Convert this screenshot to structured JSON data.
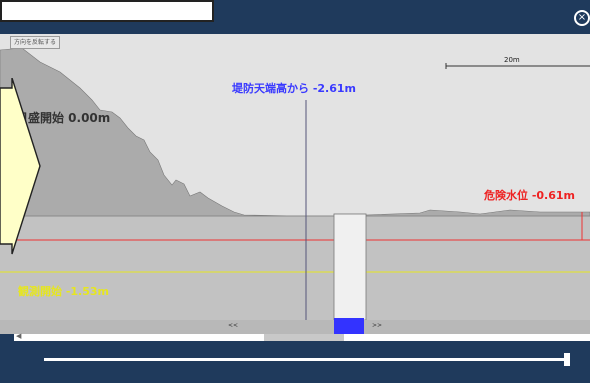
{
  "window": {
    "close_icon": "close-icon"
  },
  "view": {
    "mode_label": "方向を反転する",
    "scale_label": "20m",
    "nav_left": "<<",
    "nav_right": ">>"
  },
  "levels": {
    "ground": {
      "label": "日盛開始 0.00m",
      "color": "#333333"
    },
    "bank_top": {
      "label": "堤防天端高から -2.61m",
      "color": "#3a3aff"
    },
    "danger": {
      "label": "危険水位 -0.61m",
      "color": "#ee2222"
    },
    "warning": {
      "label": "観測開始 -1.53m",
      "color": "#e6e620"
    }
  },
  "timeline": {
    "position": 1.0
  },
  "colors": {
    "frame": "#1f3a5c",
    "sky": "#e3e3e3",
    "ground": "#ababab",
    "water": "#c2c2c2",
    "marker": "#3333ff"
  }
}
